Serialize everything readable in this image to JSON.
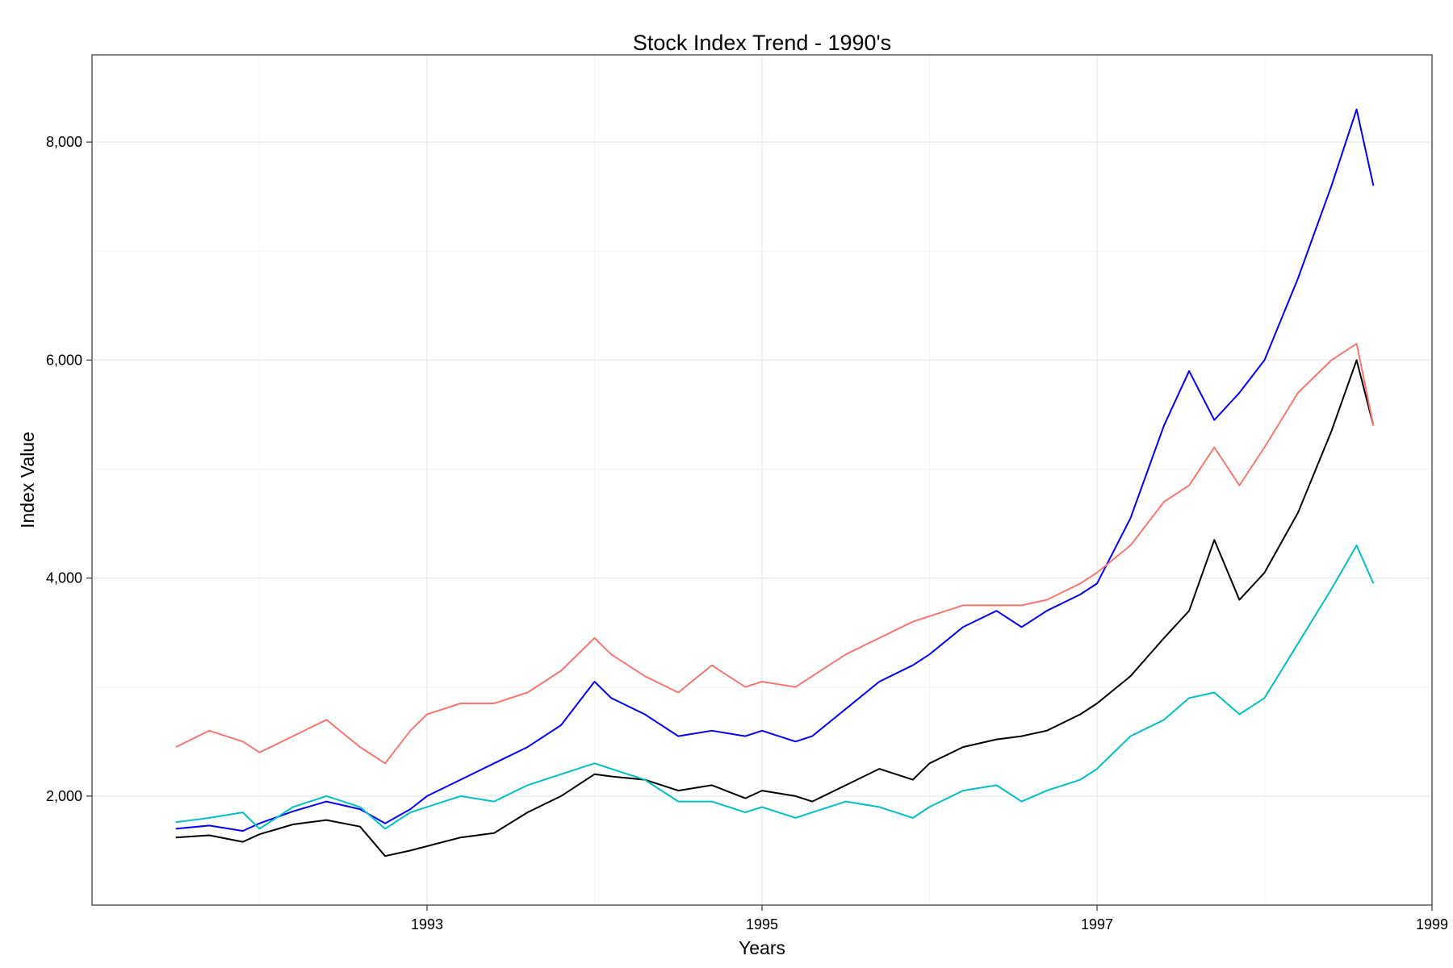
{
  "chart_data": {
    "type": "line",
    "title": "Stock Index Trend - 1990's",
    "xlabel": "Years",
    "ylabel": "Index Value",
    "xlim": [
      1991.0,
      1999.0
    ],
    "ylim": [
      1000,
      8800
    ],
    "x_ticks": [
      1993,
      1995,
      1997,
      1999
    ],
    "x_tick_labels": [
      "1993",
      "1995",
      "1997",
      "1999"
    ],
    "y_ticks": [
      2000,
      4000,
      6000,
      8000
    ],
    "y_tick_labels": [
      "2,000",
      "4,000",
      "6,000",
      "8,000"
    ],
    "grid": true,
    "legend": "none",
    "series": [
      {
        "color": "#000000",
        "x": [
          1991.5,
          1991.7,
          1991.9,
          1992.0,
          1992.2,
          1992.4,
          1992.6,
          1992.75,
          1992.9,
          1993.0,
          1993.2,
          1993.4,
          1993.6,
          1993.8,
          1994.0,
          1994.1,
          1994.3,
          1994.5,
          1994.7,
          1994.9,
          1995.0,
          1995.2,
          1995.3,
          1995.5,
          1995.7,
          1995.9,
          1996.0,
          1996.2,
          1996.4,
          1996.55,
          1996.7,
          1996.9,
          1997.0,
          1997.2,
          1997.4,
          1997.55,
          1997.7,
          1997.85,
          1998.0,
          1998.2,
          1998.4,
          1998.55,
          1998.65
        ],
        "y": [
          1620,
          1640,
          1580,
          1650,
          1740,
          1780,
          1720,
          1450,
          1500,
          1540,
          1620,
          1660,
          1850,
          2000,
          2200,
          2180,
          2150,
          2050,
          2100,
          1980,
          2050,
          2000,
          1950,
          2100,
          2250,
          2150,
          2300,
          2450,
          2520,
          2550,
          2600,
          2750,
          2850,
          3100,
          3450,
          3700,
          4350,
          3800,
          4050,
          4600,
          5350,
          6000,
          5400
        ]
      },
      {
        "color": "#0000ff",
        "x": [
          1991.5,
          1991.7,
          1991.9,
          1992.0,
          1992.2,
          1992.4,
          1992.6,
          1992.75,
          1992.9,
          1993.0,
          1993.2,
          1993.4,
          1993.6,
          1993.8,
          1994.0,
          1994.1,
          1994.3,
          1994.5,
          1994.7,
          1994.9,
          1995.0,
          1995.2,
          1995.3,
          1995.5,
          1995.7,
          1995.9,
          1996.0,
          1996.2,
          1996.4,
          1996.55,
          1996.7,
          1996.9,
          1997.0,
          1997.2,
          1997.4,
          1997.55,
          1997.7,
          1997.85,
          1998.0,
          1998.2,
          1998.4,
          1998.55,
          1998.65
        ],
        "y": [
          1700,
          1730,
          1680,
          1750,
          1860,
          1950,
          1880,
          1750,
          1880,
          2000,
          2150,
          2300,
          2450,
          2650,
          3050,
          2900,
          2750,
          2550,
          2600,
          2550,
          2600,
          2500,
          2550,
          2800,
          3050,
          3200,
          3300,
          3550,
          3700,
          3550,
          3700,
          3850,
          3950,
          4550,
          5400,
          5900,
          5450,
          5700,
          6000,
          6750,
          7600,
          8300,
          7600
        ]
      },
      {
        "color": "#f8766d",
        "x": [
          1991.5,
          1991.7,
          1991.9,
          1992.0,
          1992.2,
          1992.4,
          1992.6,
          1992.75,
          1992.9,
          1993.0,
          1993.2,
          1993.4,
          1993.6,
          1993.8,
          1994.0,
          1994.1,
          1994.3,
          1994.5,
          1994.7,
          1994.9,
          1995.0,
          1995.2,
          1995.3,
          1995.5,
          1995.7,
          1995.9,
          1996.0,
          1996.2,
          1996.4,
          1996.55,
          1996.7,
          1996.9,
          1997.0,
          1997.2,
          1997.4,
          1997.55,
          1997.7,
          1997.85,
          1998.0,
          1998.2,
          1998.4,
          1998.55,
          1998.65
        ],
        "y": [
          2450,
          2600,
          2500,
          2400,
          2550,
          2700,
          2450,
          2300,
          2600,
          2750,
          2850,
          2850,
          2950,
          3150,
          3450,
          3300,
          3100,
          2950,
          3200,
          3000,
          3050,
          3000,
          3100,
          3300,
          3450,
          3600,
          3650,
          3750,
          3750,
          3750,
          3800,
          3950,
          4050,
          4300,
          4700,
          4850,
          5200,
          4850,
          5200,
          5700,
          6000,
          6150,
          5400
        ]
      },
      {
        "color": "#00bfc4",
        "x": [
          1991.5,
          1991.7,
          1991.9,
          1992.0,
          1992.2,
          1992.4,
          1992.6,
          1992.75,
          1992.9,
          1993.0,
          1993.2,
          1993.4,
          1993.6,
          1993.8,
          1994.0,
          1994.1,
          1994.3,
          1994.5,
          1994.7,
          1994.9,
          1995.0,
          1995.2,
          1995.3,
          1995.5,
          1995.7,
          1995.9,
          1996.0,
          1996.2,
          1996.4,
          1996.55,
          1996.7,
          1996.9,
          1997.0,
          1997.2,
          1997.4,
          1997.55,
          1997.7,
          1997.85,
          1998.0,
          1998.2,
          1998.4,
          1998.55,
          1998.65
        ],
        "y": [
          1760,
          1800,
          1850,
          1700,
          1900,
          2000,
          1900,
          1700,
          1850,
          1900,
          2000,
          1950,
          2100,
          2200,
          2300,
          2250,
          2150,
          1950,
          1950,
          1850,
          1900,
          1800,
          1850,
          1950,
          1900,
          1800,
          1900,
          2050,
          2100,
          1950,
          2050,
          2150,
          2250,
          2550,
          2700,
          2900,
          2950,
          2750,
          2900,
          3400,
          3900,
          4300,
          3950
        ]
      }
    ]
  }
}
